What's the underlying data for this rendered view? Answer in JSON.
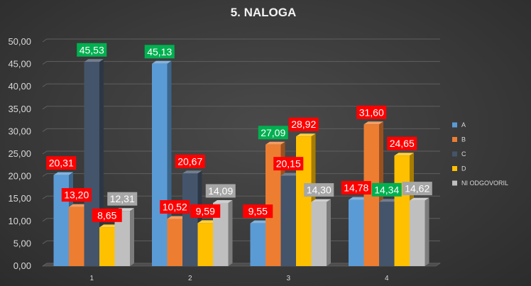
{
  "chart_data": {
    "type": "bar",
    "title": "5. NALOGA",
    "categories": [
      "1",
      "2",
      "3",
      "4"
    ],
    "series": [
      {
        "name": "A",
        "color": "#5b9bd5",
        "values": [
          20.31,
          45.13,
          9.55,
          14.78
        ],
        "labels": [
          "20,31",
          "45,13",
          "9,55",
          "14,78"
        ]
      },
      {
        "name": "B",
        "color": "#ed7d31",
        "values": [
          13.2,
          10.52,
          27.09,
          31.6
        ],
        "labels": [
          "13,20",
          "10,52",
          "27,09",
          "31,60"
        ]
      },
      {
        "name": "C",
        "color": "#44546a",
        "values": [
          45.53,
          20.67,
          20.15,
          14.34
        ],
        "labels": [
          "45,53",
          "20,67",
          "20,15",
          "14,34"
        ]
      },
      {
        "name": "D",
        "color": "#ffc000",
        "values": [
          8.65,
          9.59,
          28.92,
          24.65
        ],
        "labels": [
          "8,65",
          "9,59",
          "28,92",
          "24,65"
        ]
      },
      {
        "name": "NI ODGOVORIL",
        "color": "#bfbfbf",
        "values": [
          12.31,
          14.09,
          14.3,
          14.62
        ],
        "labels": [
          "12,31",
          "14,09",
          "14,30",
          "14,62"
        ]
      }
    ],
    "ylim": [
      0,
      50
    ],
    "yticks": [
      "0,00",
      "5,00",
      "10,00",
      "15,00",
      "20,00",
      "25,00",
      "30,00",
      "35,00",
      "40,00",
      "45,00",
      "50,00"
    ],
    "grid": true,
    "legend": "right",
    "label_colors": {
      "max": "#00b050",
      "default": "#ff0000",
      "min": "#a6a6a6"
    },
    "label_styles": [
      [
        "default",
        "default",
        "max",
        "default",
        "min"
      ],
      [
        "max",
        "default",
        "default",
        "default",
        "min"
      ],
      [
        "default",
        "max",
        "default",
        "default",
        "min"
      ],
      [
        "default",
        "default",
        "max",
        "default",
        "min"
      ]
    ]
  }
}
